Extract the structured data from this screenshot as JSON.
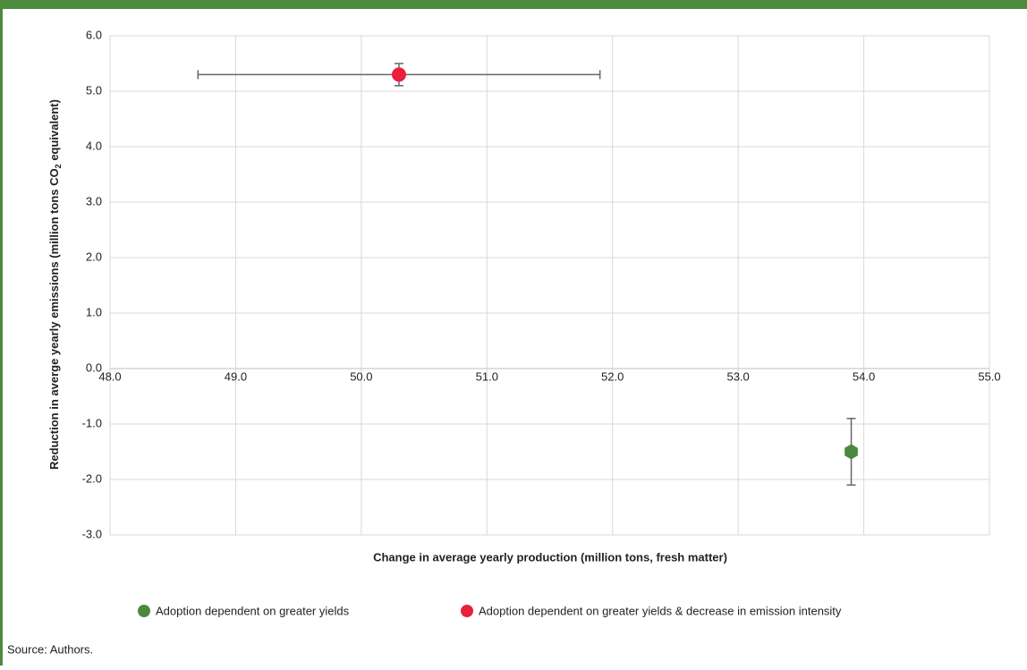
{
  "chart_data": {
    "type": "scatter",
    "x_label": "Change in average yearly production (million tons, fresh matter)",
    "y_label_parts": [
      "Reduction in averge yearly  emissions (million tons CO",
      "2",
      " equivalent)"
    ],
    "xlim": [
      48,
      55
    ],
    "ylim": [
      -3,
      6
    ],
    "xticks": [
      {
        "value": 48,
        "label": "48.0"
      },
      {
        "value": 49,
        "label": "49.0"
      },
      {
        "value": 50,
        "label": "50.0"
      },
      {
        "value": 51,
        "label": "51.0"
      },
      {
        "value": 52,
        "label": "52.0"
      },
      {
        "value": 53,
        "label": "53.0"
      },
      {
        "value": 54,
        "label": "54.0"
      },
      {
        "value": 55,
        "label": "55.0"
      }
    ],
    "yticks": [
      {
        "value": -3,
        "label": "-3.0"
      },
      {
        "value": -2,
        "label": "-2.0"
      },
      {
        "value": -1,
        "label": "-1.0"
      },
      {
        "value": 0,
        "label": "0.0"
      },
      {
        "value": 1,
        "label": "1.0"
      },
      {
        "value": 2,
        "label": "2.0"
      },
      {
        "value": 3,
        "label": "3.0"
      },
      {
        "value": 4,
        "label": "4.0"
      },
      {
        "value": 5,
        "label": "5.0"
      },
      {
        "value": 6,
        "label": "6.0"
      }
    ],
    "grid": true,
    "series": [
      {
        "name": "Adoption dependent on greater yields",
        "color": "#4a8a3c",
        "marker": "hexagon",
        "x": [
          53.9
        ],
        "y": [
          -1.5
        ],
        "yerr": [
          0.6
        ]
      },
      {
        "name": "Adoption dependent on greater yields & decrease in emission intensity",
        "color": "#e8203a",
        "marker": "circle",
        "x": [
          50.3
        ],
        "y": [
          5.3
        ],
        "xerr": [
          1.6
        ],
        "yerr": [
          0.2
        ]
      }
    ],
    "source": "Source: Authors."
  }
}
